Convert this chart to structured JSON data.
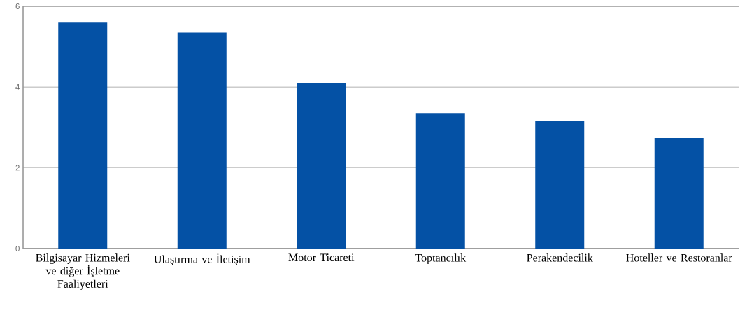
{
  "chart_data": {
    "type": "bar",
    "categories": [
      "Bilgisayar Hizmeleri ve diğer İşletme Faaliyetleri",
      "Ulaştırma ve İletişim",
      "Motor Ticareti",
      "Toptancılık",
      "Perakendecilik",
      "Hoteller ve Restoranlar"
    ],
    "values": [
      5.6,
      5.35,
      4.1,
      3.35,
      3.15,
      2.75
    ],
    "color": "#0451a5",
    "ylim": [
      0,
      6
    ],
    "yticks": [
      0,
      2,
      4,
      6
    ],
    "grid": "y"
  }
}
